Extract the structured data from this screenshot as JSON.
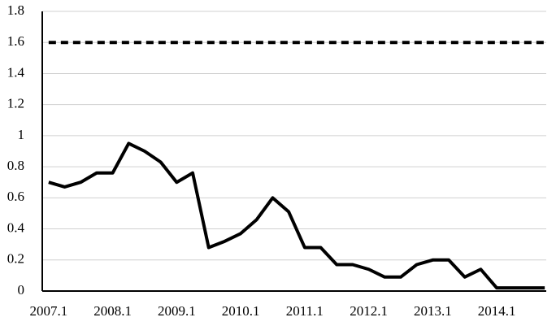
{
  "chart_data": {
    "type": "line",
    "categories": [
      "2007.1",
      null,
      null,
      null,
      "2008.1",
      null,
      null,
      null,
      "2009.1",
      null,
      null,
      null,
      "2010.1",
      null,
      null,
      null,
      "2011.1",
      null,
      null,
      null,
      "2012.1",
      null,
      null,
      null,
      "2013.1",
      null,
      null,
      null,
      "2014.1",
      null,
      null,
      null
    ],
    "series": [
      {
        "color": "#000000",
        "dash": false,
        "values": [
          0.7,
          0.67,
          0.7,
          0.76,
          0.76,
          0.95,
          0.9,
          0.83,
          0.7,
          0.76,
          0.28,
          0.32,
          0.37,
          0.46,
          0.6,
          0.51,
          0.28,
          0.28,
          0.17,
          0.17,
          0.14,
          0.09,
          0.09,
          0.17,
          0.2,
          0.2,
          0.09,
          0.14,
          0.02,
          0.02,
          0.02,
          0.02
        ]
      },
      {
        "color": "#000000",
        "dash": true,
        "values": [
          1.6,
          1.6,
          1.6,
          1.6,
          1.6,
          1.6,
          1.6,
          1.6,
          1.6,
          1.6,
          1.6,
          1.6,
          1.6,
          1.6,
          1.6,
          1.6,
          1.6,
          1.6,
          1.6,
          1.6,
          1.6,
          1.6,
          1.6,
          1.6,
          1.6,
          1.6,
          1.6,
          1.6,
          1.6,
          1.6,
          1.6,
          1.6
        ]
      }
    ],
    "ylim": [
      0,
      1.8
    ],
    "yticks": [
      0,
      0.2,
      0.4,
      0.6,
      0.8,
      1,
      1.2,
      1.4,
      1.6,
      1.8
    ],
    "grid": true
  }
}
